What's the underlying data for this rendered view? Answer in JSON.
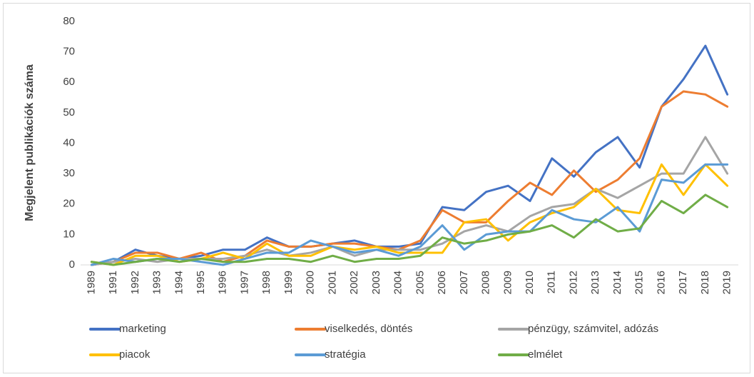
{
  "chart_data": {
    "type": "line",
    "y_label": "Megjelent publikációk száma",
    "categories": [
      "1989",
      "1991",
      "1992",
      "1993",
      "1994",
      "1995",
      "1996",
      "1997",
      "1998",
      "1999",
      "2000",
      "2001",
      "2002",
      "2003",
      "2004",
      "2005",
      "2006",
      "2007",
      "2008",
      "2009",
      "2010",
      "2011",
      "2012",
      "2013",
      "2014",
      "2015",
      "2016",
      "2017",
      "2018",
      "2019"
    ],
    "series": [
      {
        "name": "marketing",
        "color": "#4472c4",
        "values": [
          0,
          1,
          5,
          3,
          2,
          3,
          5,
          5,
          9,
          6,
          6,
          7,
          8,
          6,
          6,
          7,
          19,
          18,
          24,
          26,
          21,
          35,
          29,
          37,
          42,
          32,
          52,
          61,
          72,
          56
        ]
      },
      {
        "name": "viselkedés, döntés",
        "color": "#ed7d31",
        "values": [
          0,
          1,
          4,
          4,
          2,
          4,
          1,
          3,
          8,
          6,
          6,
          7,
          7,
          6,
          5,
          8,
          18,
          14,
          14,
          21,
          27,
          23,
          31,
          24,
          28,
          35,
          52,
          57,
          56,
          52
        ]
      },
      {
        "name": "pénzügy, számvitel, adózás",
        "color": "#a5a5a5",
        "values": [
          0,
          1,
          2,
          1,
          2,
          2,
          2,
          3,
          5,
          3,
          4,
          6,
          3,
          5,
          5,
          5,
          7,
          11,
          13,
          11,
          16,
          19,
          20,
          25,
          22,
          26,
          30,
          30,
          42,
          30
        ]
      },
      {
        "name": "piacok",
        "color": "#ffc000",
        "values": [
          1,
          0,
          3,
          3,
          1,
          2,
          4,
          2,
          7,
          3,
          3,
          6,
          5,
          6,
          4,
          4,
          4,
          14,
          15,
          8,
          14,
          17,
          19,
          25,
          18,
          17,
          33,
          23,
          33,
          26
        ]
      },
      {
        "name": "stratégia",
        "color": "#5b9bd5",
        "values": [
          0,
          2,
          1,
          2,
          2,
          1,
          0,
          2,
          4,
          4,
          8,
          6,
          4,
          5,
          3,
          6,
          13,
          5,
          10,
          11,
          11,
          18,
          15,
          14,
          19,
          11,
          28,
          27,
          33,
          33
        ]
      },
      {
        "name": "elmélet",
        "color": "#70ad47",
        "values": [
          1,
          0,
          1,
          2,
          1,
          2,
          1,
          1,
          2,
          2,
          1,
          3,
          1,
          2,
          2,
          3,
          9,
          7,
          8,
          10,
          11,
          13,
          9,
          15,
          11,
          12,
          21,
          17,
          23,
          19
        ]
      }
    ],
    "ylim": [
      0,
      80
    ],
    "yticks": [
      0,
      10,
      20,
      30,
      40,
      50,
      60,
      70,
      80
    ],
    "grid": false,
    "legend": "bottom"
  }
}
